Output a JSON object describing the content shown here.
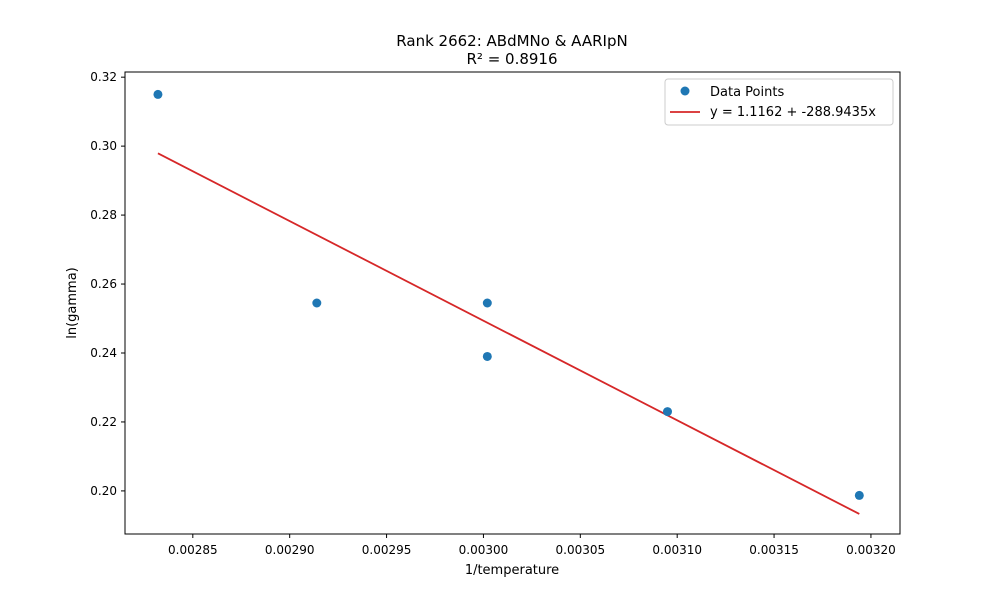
{
  "chart_data": {
    "type": "scatter",
    "title": "Rank 2662: ABdMNo & AARIpN",
    "subtitle": "R² = 0.8916",
    "xlabel": "1/temperature",
    "ylabel": "ln(gamma)",
    "xlim": [
      0.002815,
      0.003215
    ],
    "ylim": [
      0.1875,
      0.3215
    ],
    "xticks": [
      0.00285,
      0.0029,
      0.00295,
      0.003,
      0.00305,
      0.0031,
      0.00315,
      0.0032
    ],
    "xtick_labels": [
      "0.00285",
      "0.00290",
      "0.00295",
      "0.00300",
      "0.00305",
      "0.00310",
      "0.00315",
      "0.00320"
    ],
    "yticks": [
      0.2,
      0.22,
      0.24,
      0.26,
      0.28,
      0.3,
      0.32
    ],
    "ytick_labels": [
      "0.20",
      "0.22",
      "0.24",
      "0.26",
      "0.28",
      "0.30",
      "0.32"
    ],
    "grid": false,
    "legend_position": "top-right",
    "series": [
      {
        "name": "Data Points",
        "kind": "scatter",
        "color": "#1f77b4",
        "x": [
          0.002832,
          0.002914,
          0.003002,
          0.003002,
          0.003095,
          0.003194
        ],
        "y": [
          0.315,
          0.2545,
          0.2545,
          0.239,
          0.223,
          0.1987
        ]
      },
      {
        "name": "y = 1.1162 + -288.9435x",
        "kind": "line",
        "color": "#d62728",
        "intercept": 1.1162,
        "slope": -288.9435,
        "x_range": [
          0.002832,
          0.003194
        ]
      }
    ]
  }
}
